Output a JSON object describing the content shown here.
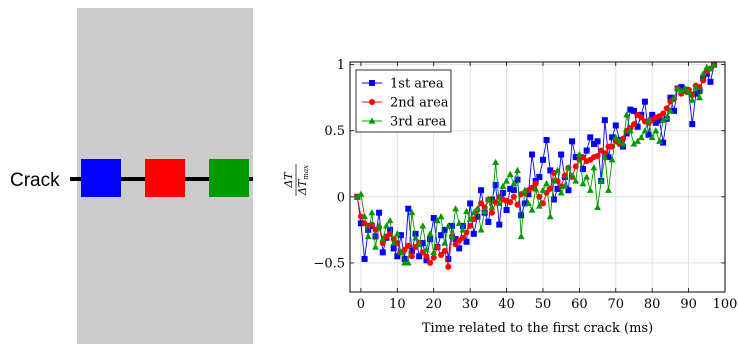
{
  "specimen": {
    "crack_label": "Crack",
    "background_color": "#cccccc",
    "area_colors": [
      "#0000ff",
      "#ff0000",
      "#009900"
    ]
  },
  "chart_data": {
    "type": "line",
    "xlabel": "Time related to the first crack (ms)",
    "ylabel": "ΔT / ΔT_max",
    "xlim": [
      -3,
      100
    ],
    "ylim": [
      -0.72,
      1.02
    ],
    "xticks": [
      0,
      10,
      20,
      30,
      40,
      50,
      60,
      70,
      80,
      90,
      100
    ],
    "yticks": [
      -0.5,
      0,
      0.5,
      1
    ],
    "ytick_labels": [
      "−0.5",
      "0",
      "0.5",
      "1"
    ],
    "grid": true,
    "legend_position": "top-left",
    "series": [
      {
        "name": "1st area",
        "color": "#0000ff",
        "marker": "square",
        "x": [
          -1,
          0,
          1,
          2,
          3,
          4,
          5,
          6,
          7,
          8,
          9,
          10,
          11,
          12,
          13,
          14,
          15,
          16,
          17,
          18,
          19,
          20,
          21,
          22,
          23,
          24,
          25,
          26,
          27,
          28,
          29,
          30,
          31,
          32,
          33,
          34,
          35,
          36,
          37,
          38,
          39,
          40,
          41,
          42,
          43,
          44,
          45,
          46,
          47,
          48,
          49,
          50,
          51,
          52,
          53,
          54,
          55,
          56,
          57,
          58,
          59,
          60,
          61,
          62,
          63,
          64,
          65,
          66,
          67,
          68,
          69,
          70,
          71,
          72,
          73,
          74,
          75,
          76,
          77,
          78,
          79,
          80,
          81,
          82,
          83,
          84,
          85,
          86,
          87,
          88,
          89,
          90,
          91,
          92,
          93,
          94,
          95,
          96,
          97
        ],
        "y": [
          0,
          -0.2,
          -0.47,
          -0.25,
          -0.22,
          -0.3,
          -0.12,
          -0.42,
          -0.31,
          -0.25,
          -0.39,
          -0.45,
          -0.29,
          -0.47,
          -0.09,
          -0.41,
          -0.28,
          -0.45,
          -0.35,
          -0.48,
          -0.32,
          -0.16,
          -0.38,
          -0.29,
          -0.25,
          -0.47,
          -0.22,
          -0.32,
          -0.39,
          -0.22,
          -0.34,
          -0.05,
          -0.28,
          -0.15,
          0.05,
          -0.12,
          -0.19,
          -0.02,
          0.09,
          -0.21,
          0.03,
          -0.1,
          0.06,
          0.05,
          0.13,
          -0.14,
          -0.05,
          0.02,
          0.32,
          0.12,
          0.15,
          0.28,
          0.43,
          0.2,
          -0.02,
          0.06,
          0.32,
          0.15,
          0.05,
          0.42,
          0.3,
          0.3,
          0.21,
          0.35,
          0.45,
          0.4,
          0.42,
          0.12,
          0.58,
          0.3,
          0.45,
          0.54,
          0.43,
          0.38,
          0.48,
          0.66,
          0.65,
          0.53,
          0.62,
          0.72,
          0.47,
          0.62,
          0.56,
          0.58,
          0.41,
          0.59,
          0.75,
          0.65,
          0.82,
          0.83,
          0.81,
          0.8,
          0.55,
          0.78,
          0.8,
          0.9,
          0.93,
          0.87,
          1.0
        ]
      },
      {
        "name": "2nd area",
        "color": "#ff0000",
        "marker": "circle",
        "x": [
          -1,
          0,
          1,
          2,
          3,
          4,
          5,
          6,
          7,
          8,
          9,
          10,
          11,
          12,
          13,
          14,
          15,
          16,
          17,
          18,
          19,
          20,
          21,
          22,
          23,
          24,
          25,
          26,
          27,
          28,
          29,
          30,
          31,
          32,
          33,
          34,
          35,
          36,
          37,
          38,
          39,
          40,
          41,
          42,
          43,
          44,
          45,
          46,
          47,
          48,
          49,
          50,
          51,
          52,
          53,
          54,
          55,
          56,
          57,
          58,
          59,
          60,
          61,
          62,
          63,
          64,
          65,
          66,
          67,
          68,
          69,
          70,
          71,
          72,
          73,
          74,
          75,
          76,
          77,
          78,
          79,
          80,
          81,
          82,
          83,
          84,
          85,
          86,
          87,
          88,
          89,
          90,
          91,
          92,
          93,
          94,
          95,
          96,
          97
        ],
        "y": [
          0,
          -0.15,
          -0.2,
          -0.22,
          -0.21,
          -0.25,
          -0.23,
          -0.35,
          -0.3,
          -0.28,
          -0.32,
          -0.35,
          -0.42,
          -0.4,
          -0.37,
          -0.45,
          -0.38,
          -0.35,
          -0.42,
          -0.45,
          -0.5,
          -0.46,
          -0.38,
          -0.44,
          -0.41,
          -0.53,
          -0.3,
          -0.36,
          -0.33,
          -0.31,
          -0.27,
          -0.22,
          -0.17,
          -0.1,
          -0.05,
          -0.08,
          -0.02,
          -0.12,
          -0.04,
          0.0,
          -0.02,
          -0.03,
          -0.04,
          0.0,
          -0.06,
          0.02,
          0.03,
          0.05,
          0.07,
          0.1,
          0.0,
          -0.05,
          0.03,
          0.06,
          0.18,
          0.12,
          0.08,
          0.16,
          0.22,
          0.15,
          0.23,
          0.28,
          0.3,
          0.27,
          0.28,
          0.3,
          0.31,
          0.35,
          0.33,
          0.38,
          0.38,
          0.42,
          0.4,
          0.44,
          0.5,
          0.52,
          0.55,
          0.62,
          0.6,
          0.57,
          0.56,
          0.58,
          0.6,
          0.61,
          0.63,
          0.67,
          0.72,
          0.74,
          0.82,
          0.78,
          0.8,
          0.81,
          0.77,
          0.84,
          0.83,
          0.88,
          0.95,
          0.97,
          1.0
        ]
      },
      {
        "name": "3rd area",
        "color": "#009900",
        "marker": "triangle",
        "x": [
          -1,
          0,
          1,
          2,
          3,
          4,
          5,
          6,
          7,
          8,
          9,
          10,
          11,
          12,
          13,
          14,
          15,
          16,
          17,
          18,
          19,
          20,
          21,
          22,
          23,
          24,
          25,
          26,
          27,
          28,
          29,
          30,
          31,
          32,
          33,
          34,
          35,
          36,
          37,
          38,
          39,
          40,
          41,
          42,
          43,
          44,
          45,
          46,
          47,
          48,
          49,
          50,
          51,
          52,
          53,
          54,
          55,
          56,
          57,
          58,
          59,
          60,
          61,
          62,
          63,
          64,
          65,
          66,
          67,
          68,
          69,
          70,
          71,
          72,
          73,
          74,
          75,
          76,
          77,
          78,
          79,
          80,
          81,
          82,
          83,
          84,
          85,
          86,
          87,
          88,
          89,
          90,
          91,
          92,
          93,
          94,
          95,
          96,
          97
        ],
        "y": [
          0,
          0.02,
          -0.15,
          -0.3,
          -0.12,
          -0.38,
          -0.22,
          -0.32,
          -0.22,
          -0.18,
          -0.35,
          -0.28,
          -0.42,
          -0.5,
          -0.5,
          -0.12,
          -0.31,
          -0.36,
          -0.22,
          -0.4,
          -0.28,
          -0.42,
          -0.18,
          -0.15,
          -0.35,
          -0.22,
          -0.3,
          -0.09,
          -0.2,
          -0.25,
          -0.11,
          -0.17,
          -0.12,
          -0.09,
          -0.25,
          -0.11,
          -0.02,
          -0.08,
          0.26,
          -0.05,
          0.08,
          0.12,
          0.17,
          0.1,
          0.2,
          -0.3,
          0.05,
          -0.05,
          -0.1,
          0.06,
          -0.07,
          0.05,
          0.1,
          -0.15,
          0.12,
          0.2,
          0.03,
          0.08,
          0.22,
          0.16,
          0.12,
          0.32,
          0.1,
          0.15,
          0.05,
          0.22,
          -0.08,
          0.12,
          0.3,
          0.05,
          0.28,
          0.45,
          0.42,
          0.4,
          0.62,
          0.5,
          0.4,
          0.42,
          0.45,
          0.5,
          0.58,
          0.45,
          0.5,
          0.42,
          0.58,
          0.6,
          0.65,
          0.75,
          0.82,
          0.8,
          0.82,
          0.79,
          0.73,
          0.83,
          0.75,
          0.93,
          0.98,
          0.97,
          1.0
        ]
      }
    ]
  }
}
